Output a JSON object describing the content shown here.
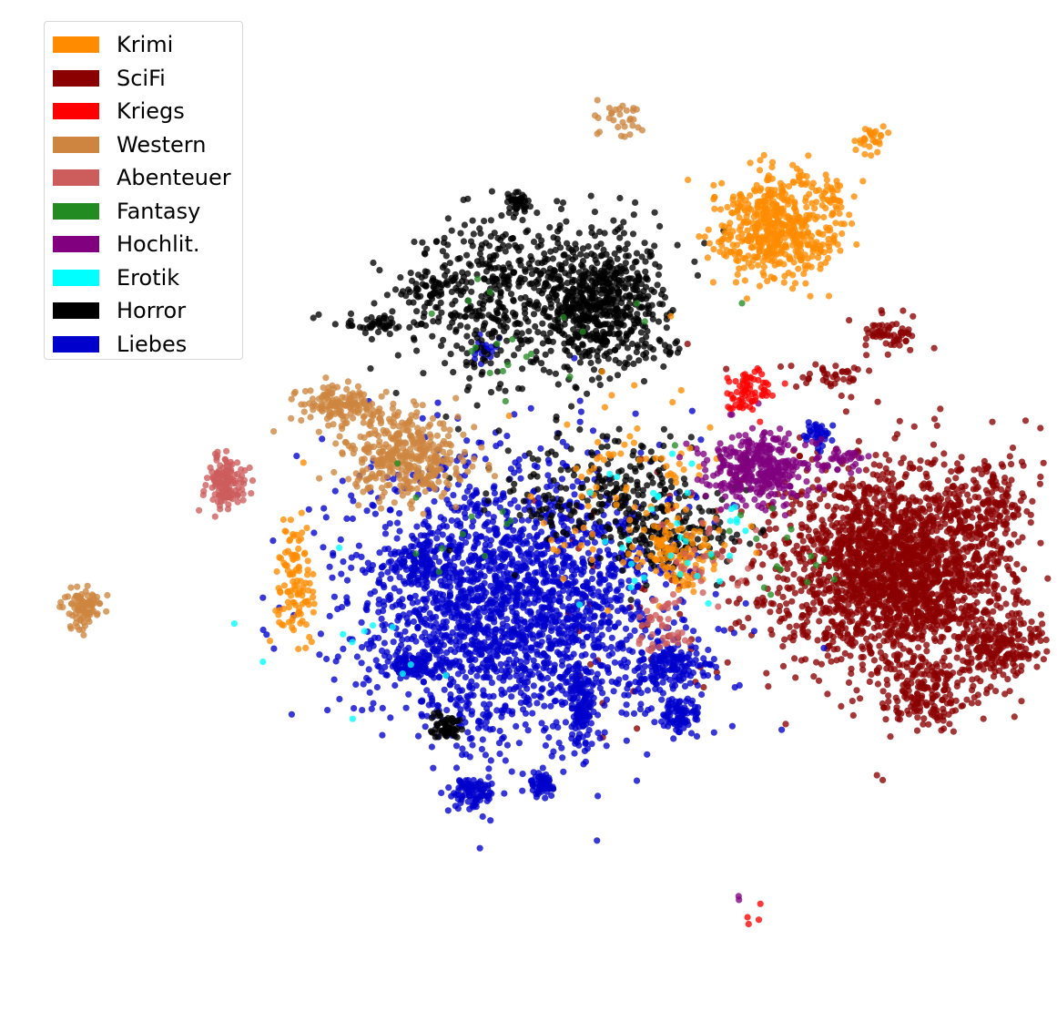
{
  "chart_data": {
    "type": "scatter",
    "title": "",
    "xlabel": "",
    "ylabel": "",
    "axes": "hidden",
    "grid": false,
    "legend_position": "top-left",
    "x_range": [
      -60,
      60
    ],
    "y_range": [
      -60,
      60
    ],
    "series": [
      {
        "name": "Krimi",
        "color": "#ff8c00",
        "clusters": [
          {
            "x": 28,
            "y": 33,
            "sx": 3.5,
            "sy": 3,
            "n": 520
          },
          {
            "x": 39,
            "y": 44,
            "sx": 1,
            "sy": 1.2,
            "n": 30
          },
          {
            "x": 34,
            "y": 37,
            "sx": 1.2,
            "sy": 1,
            "n": 30
          },
          {
            "x": -26.5,
            "y": -8,
            "sx": 1.1,
            "sy": 4,
            "n": 110
          },
          {
            "x": 17,
            "y": -5,
            "sx": 2,
            "sy": 2,
            "n": 100
          },
          {
            "x": 11,
            "y": 3,
            "sx": 6,
            "sy": 6,
            "n": 90
          }
        ]
      },
      {
        "name": "SciFi",
        "color": "#8b0000",
        "clusters": [
          {
            "x": 42,
            "y": -7,
            "sx": 6.5,
            "sy": 6,
            "n": 2300
          },
          {
            "x": 54,
            "y": -16,
            "sx": 2.4,
            "sy": 1.5,
            "n": 160
          },
          {
            "x": 45,
            "y": -22,
            "sx": 2.4,
            "sy": 1.8,
            "n": 150
          },
          {
            "x": 52,
            "y": 1,
            "sx": 2.2,
            "sy": 2.5,
            "n": 120
          },
          {
            "x": 41,
            "y": 21,
            "sx": 1.5,
            "sy": 1,
            "n": 60
          },
          {
            "x": 34,
            "y": 16,
            "sx": 2,
            "sy": 1,
            "n": 40
          },
          {
            "x": 17,
            "y": -9,
            "sx": 7,
            "sy": 9,
            "n": 70
          }
        ]
      },
      {
        "name": "Kriegs",
        "color": "#ff0000",
        "clusters": [
          {
            "x": 25,
            "y": 14,
            "sx": 1.3,
            "sy": 1.1,
            "n": 70
          },
          {
            "x": 25,
            "y": -48,
            "sx": 0.8,
            "sy": 0.8,
            "n": 4
          }
        ]
      },
      {
        "name": "Western",
        "color": "#cd853f",
        "clusters": [
          {
            "x": -14,
            "y": 6.5,
            "sx": 3.5,
            "sy": 2.5,
            "n": 380
          },
          {
            "x": -21,
            "y": 12.5,
            "sx": 2.5,
            "sy": 1.2,
            "n": 140
          },
          {
            "x": -50.5,
            "y": -11.5,
            "sx": 1,
            "sy": 1.1,
            "n": 90
          },
          {
            "x": 10.5,
            "y": 46,
            "sx": 1.5,
            "sy": 1,
            "n": 30
          }
        ]
      },
      {
        "name": "Abenteuer",
        "color": "#cd5c5c",
        "clusters": [
          {
            "x": -34.5,
            "y": 3.5,
            "sx": 1.2,
            "sy": 1.5,
            "n": 130
          },
          {
            "x": 15,
            "y": -14,
            "sx": 1.5,
            "sy": 2,
            "n": 45
          },
          {
            "x": 20,
            "y": -6,
            "sx": 3,
            "sy": 3,
            "n": 30
          }
        ]
      },
      {
        "name": "Fantasy",
        "color": "#228b22",
        "clusters": [
          {
            "x": 3,
            "y": 20,
            "sx": 8,
            "sy": 6,
            "n": 22
          },
          {
            "x": 28,
            "y": -5,
            "sx": 4,
            "sy": 3,
            "n": 16
          },
          {
            "x": -5,
            "y": -3,
            "sx": 4,
            "sy": 3,
            "n": 10
          }
        ]
      },
      {
        "name": "Hochlit.",
        "color": "#800080",
        "clusters": [
          {
            "x": 26,
            "y": 5,
            "sx": 2.8,
            "sy": 2,
            "n": 360
          },
          {
            "x": 35,
            "y": 6,
            "sx": 1.5,
            "sy": 1,
            "n": 40
          },
          {
            "x": 24,
            "y": -45,
            "sx": 0.6,
            "sy": 0.6,
            "n": 2
          }
        ]
      },
      {
        "name": "Erotik",
        "color": "#00ffff",
        "clusters": [
          {
            "x": 15,
            "y": -4,
            "sx": 6,
            "sy": 5,
            "n": 35
          },
          {
            "x": -20,
            "y": -15,
            "sx": 5,
            "sy": 5,
            "n": 12
          }
        ]
      },
      {
        "name": "Horror",
        "color": "#000000",
        "clusters": [
          {
            "x": 7.5,
            "y": 24.5,
            "sx": 3.8,
            "sy": 4,
            "n": 650
          },
          {
            "x": -4,
            "y": 25,
            "sx": 5,
            "sy": 5,
            "n": 420
          },
          {
            "x": -11.5,
            "y": 26,
            "sx": 1.5,
            "sy": 1,
            "n": 50
          },
          {
            "x": -18,
            "y": 22,
            "sx": 2.5,
            "sy": 0.6,
            "n": 40
          },
          {
            "x": -1,
            "y": 36,
            "sx": 0.6,
            "sy": 0.8,
            "n": 40
          },
          {
            "x": -9.5,
            "y": -25.5,
            "sx": 0.8,
            "sy": 0.8,
            "n": 60
          },
          {
            "x": 8,
            "y": 3,
            "sx": 6,
            "sy": 3,
            "n": 220
          },
          {
            "x": 16,
            "y": -3,
            "sx": 4,
            "sy": 2,
            "n": 140
          },
          {
            "x": 15,
            "y": 19,
            "sx": 1.5,
            "sy": 0.6,
            "n": 15
          }
        ]
      },
      {
        "name": "Liebes",
        "color": "#0000cd",
        "clusters": [
          {
            "x": -2,
            "y": -11,
            "sx": 9,
            "sy": 8,
            "n": 2200
          },
          {
            "x": -6,
            "y": -33,
            "sx": 1.2,
            "sy": 0.9,
            "n": 90
          },
          {
            "x": 1.5,
            "y": -32,
            "sx": 0.8,
            "sy": 0.8,
            "n": 60
          },
          {
            "x": 16,
            "y": -18,
            "sx": 2,
            "sy": 1.5,
            "n": 140
          },
          {
            "x": 17,
            "y": -24,
            "sx": 1.2,
            "sy": 1,
            "n": 90
          },
          {
            "x": -13,
            "y": -18,
            "sx": 1.5,
            "sy": 0.8,
            "n": 100
          },
          {
            "x": -12,
            "y": -6,
            "sx": 1.5,
            "sy": 1.2,
            "n": 80
          },
          {
            "x": 6,
            "y": -23,
            "sx": 0.8,
            "sy": 2.5,
            "n": 120
          },
          {
            "x": 33,
            "y": 9,
            "sx": 0.8,
            "sy": 0.8,
            "n": 40
          },
          {
            "x": -5,
            "y": 19,
            "sx": 1,
            "sy": 1,
            "n": 20
          }
        ]
      }
    ]
  }
}
